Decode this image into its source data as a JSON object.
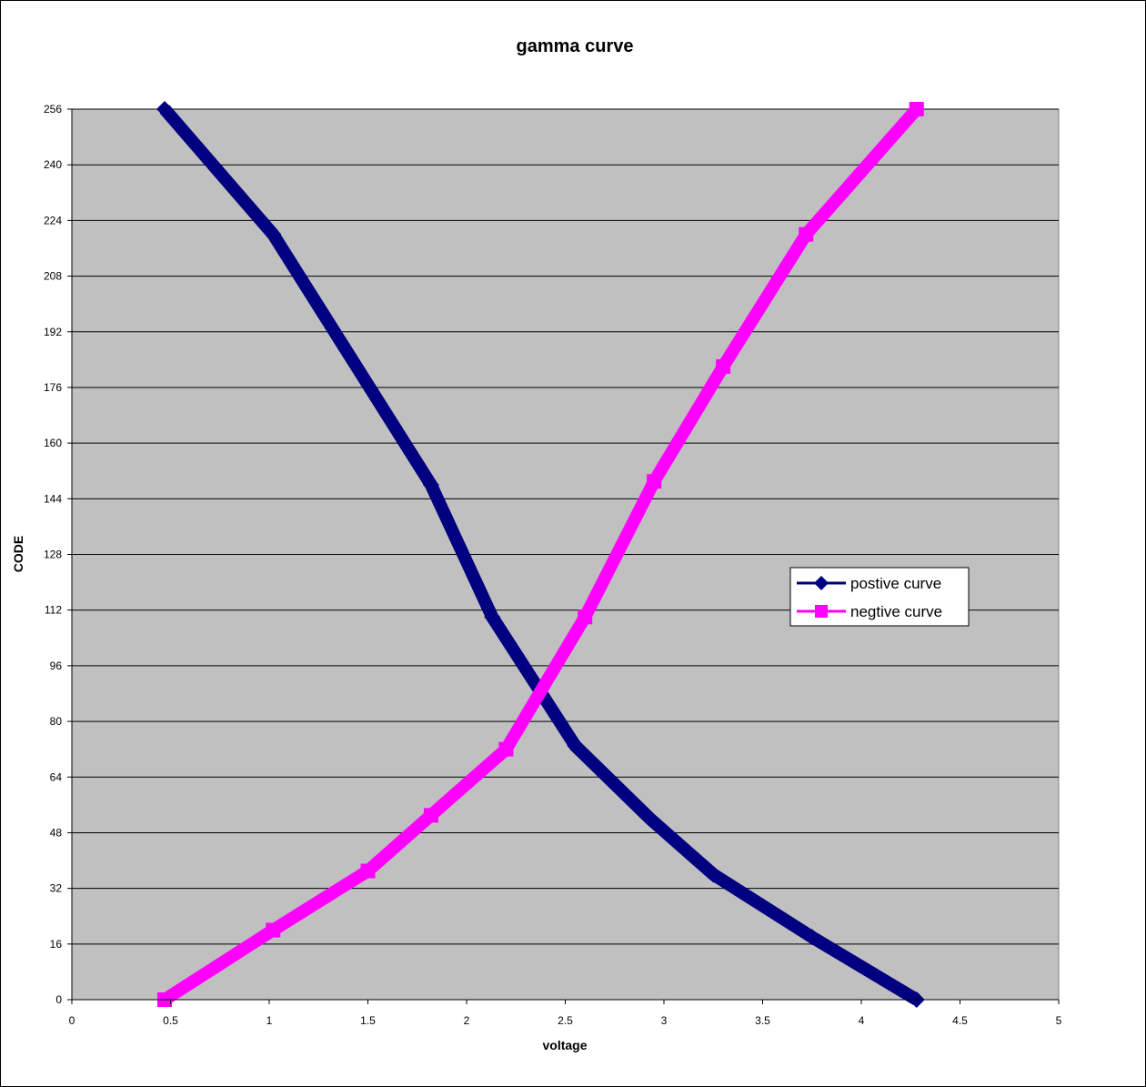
{
  "chart_data": {
    "type": "line",
    "title": "gamma curve",
    "xlabel": "voltage",
    "ylabel": "CODE",
    "xlim": [
      0,
      5
    ],
    "ylim": [
      0,
      256
    ],
    "x_ticks": [
      "0",
      "0.5",
      "1",
      "1.5",
      "2",
      "2.5",
      "3",
      "3.5",
      "4",
      "4.5",
      "5"
    ],
    "y_ticks": [
      "0",
      "16",
      "32",
      "48",
      "64",
      "80",
      "96",
      "112",
      "128",
      "144",
      "160",
      "176",
      "192",
      "208",
      "224",
      "240",
      "256"
    ],
    "grid": "horizontal",
    "legend_position": "right",
    "plot_background": "#c0c0c0",
    "series": [
      {
        "name": "postive curve",
        "color": "#000080",
        "marker": "diamond",
        "points": [
          [
            0.47,
            256
          ],
          [
            1.02,
            220
          ],
          [
            1.82,
            148
          ],
          [
            2.13,
            110
          ],
          [
            2.55,
            73
          ],
          [
            2.93,
            52
          ],
          [
            3.25,
            36
          ],
          [
            3.75,
            18
          ],
          [
            4.28,
            0
          ]
        ]
      },
      {
        "name": "negtive curve",
        "color": "#ff00ff",
        "marker": "square",
        "points": [
          [
            0.47,
            0
          ],
          [
            1.02,
            20
          ],
          [
            1.5,
            37
          ],
          [
            1.82,
            53
          ],
          [
            2.2,
            72
          ],
          [
            2.6,
            110
          ],
          [
            2.95,
            149
          ],
          [
            3.3,
            182
          ],
          [
            3.72,
            220
          ],
          [
            4.28,
            256
          ]
        ]
      }
    ]
  }
}
